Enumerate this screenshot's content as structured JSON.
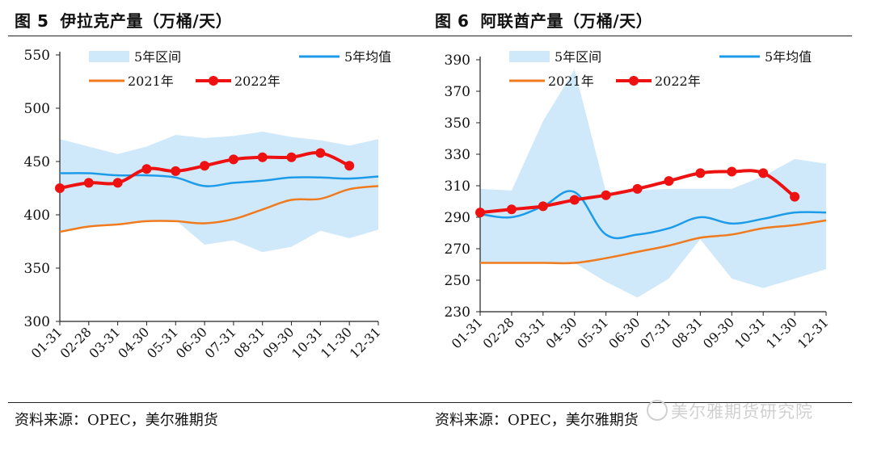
{
  "panels": [
    {
      "fig_label": "图 5",
      "title": "伊拉克产量（万桶/天）",
      "source": "资料来源：OPEC，美尔雅期货"
    },
    {
      "fig_label": "图 6",
      "title": "阿联酋产量（万桶/天）",
      "source": "资料来源：OPEC，美尔雅期货"
    }
  ],
  "watermark": "美尔雅期货研究院",
  "chart_data": [
    {
      "type": "line",
      "title": "伊拉克产量（万桶/天）",
      "categories": [
        "01-31",
        "02-28",
        "03-31",
        "04-30",
        "05-31",
        "06-30",
        "07-31",
        "08-31",
        "09-30",
        "10-31",
        "11-30",
        "12-31"
      ],
      "ylim": [
        300,
        550
      ],
      "yticks": [
        300,
        350,
        400,
        450,
        500,
        550
      ],
      "legend": [
        "5年区间",
        "5年均值",
        "2021年",
        "2022年"
      ],
      "series": [
        {
          "name": "5年区间",
          "kind": "band",
          "color": "#cfe9fb",
          "low": [
            384,
            389,
            392,
            395,
            395,
            372,
            376,
            365,
            370,
            385,
            378,
            386
          ],
          "high": [
            471,
            464,
            457,
            464,
            475,
            472,
            474,
            478,
            473,
            470,
            465,
            471
          ]
        },
        {
          "name": "5年均值",
          "kind": "line",
          "color": "#1e9be8",
          "values": [
            439,
            439,
            437,
            437,
            435,
            427,
            430,
            432,
            435,
            435,
            434,
            436
          ]
        },
        {
          "name": "2021年",
          "kind": "line",
          "color": "#f07a1e",
          "values": [
            384,
            389,
            391,
            394,
            394,
            392,
            396,
            405,
            414,
            415,
            424,
            427
          ]
        },
        {
          "name": "2022年",
          "kind": "marker-line",
          "color": "#ee1111",
          "values": [
            425,
            430,
            430,
            443,
            441,
            446,
            452,
            454,
            454,
            458,
            446,
            null
          ]
        }
      ]
    },
    {
      "type": "line",
      "title": "阿联酋产量（万桶/天）",
      "categories": [
        "01-31",
        "02-28",
        "03-31",
        "04-30",
        "05-31",
        "06-30",
        "07-31",
        "08-31",
        "09-30",
        "10-31",
        "11-30",
        "12-31"
      ],
      "ylim": [
        230,
        390
      ],
      "yticks": [
        230,
        250,
        270,
        290,
        310,
        330,
        350,
        370,
        390
      ],
      "legend": [
        "5年区间",
        "5年均值",
        "2021年",
        "2022年"
      ],
      "series": [
        {
          "name": "5年区间",
          "kind": "band",
          "color": "#cfe9fb",
          "low": [
            261,
            261,
            261,
            261,
            249,
            239,
            251,
            276,
            251,
            245,
            251,
            257
          ],
          "high": [
            308,
            307,
            351,
            384,
            306,
            307,
            308,
            308,
            308,
            316,
            327,
            324
          ]
        },
        {
          "name": "5年均值",
          "kind": "line",
          "color": "#1e9be8",
          "values": [
            292,
            290,
            297,
            306,
            279,
            279,
            283,
            290,
            286,
            289,
            293,
            293
          ]
        },
        {
          "name": "2021年",
          "kind": "line",
          "color": "#f07a1e",
          "values": [
            261,
            261,
            261,
            261,
            264,
            268,
            272,
            277,
            279,
            283,
            285,
            288
          ]
        },
        {
          "name": "2022年",
          "kind": "marker-line",
          "color": "#ee1111",
          "values": [
            293,
            295,
            297,
            301,
            304,
            308,
            313,
            318,
            319,
            318,
            303,
            null
          ]
        }
      ]
    }
  ]
}
